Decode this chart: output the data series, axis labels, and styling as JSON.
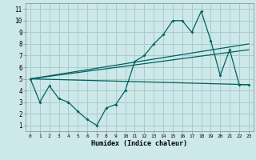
{
  "title": "",
  "xlabel": "Humidex (Indice chaleur)",
  "bg_color": "#cce8e8",
  "grid_color": "#aacccc",
  "line_color": "#006060",
  "x_ticks": [
    0,
    1,
    2,
    3,
    4,
    5,
    6,
    7,
    8,
    9,
    10,
    11,
    12,
    13,
    14,
    15,
    16,
    17,
    18,
    19,
    20,
    21,
    22,
    23
  ],
  "y_ticks": [
    1,
    2,
    3,
    4,
    5,
    6,
    7,
    8,
    9,
    10,
    11
  ],
  "xlim": [
    -0.5,
    23.5
  ],
  "ylim": [
    0.5,
    11.5
  ],
  "line1_x": [
    0,
    1,
    2,
    3,
    4,
    5,
    6,
    7,
    8,
    9,
    10,
    11,
    12,
    13,
    14,
    15,
    16,
    17,
    18,
    19,
    20,
    21,
    22,
    23
  ],
  "line1_y": [
    5.0,
    3.0,
    4.4,
    3.3,
    3.0,
    2.2,
    1.5,
    1.0,
    2.5,
    2.8,
    4.0,
    6.5,
    7.0,
    8.0,
    8.8,
    10.0,
    10.0,
    9.0,
    10.8,
    8.3,
    5.3,
    7.5,
    4.5,
    4.5
  ],
  "line2_x": [
    0,
    23
  ],
  "line2_y": [
    5.0,
    7.5
  ],
  "line3_x": [
    0,
    23
  ],
  "line3_y": [
    5.0,
    4.5
  ],
  "line4_x": [
    0,
    23
  ],
  "line4_y": [
    5.0,
    8.0
  ]
}
